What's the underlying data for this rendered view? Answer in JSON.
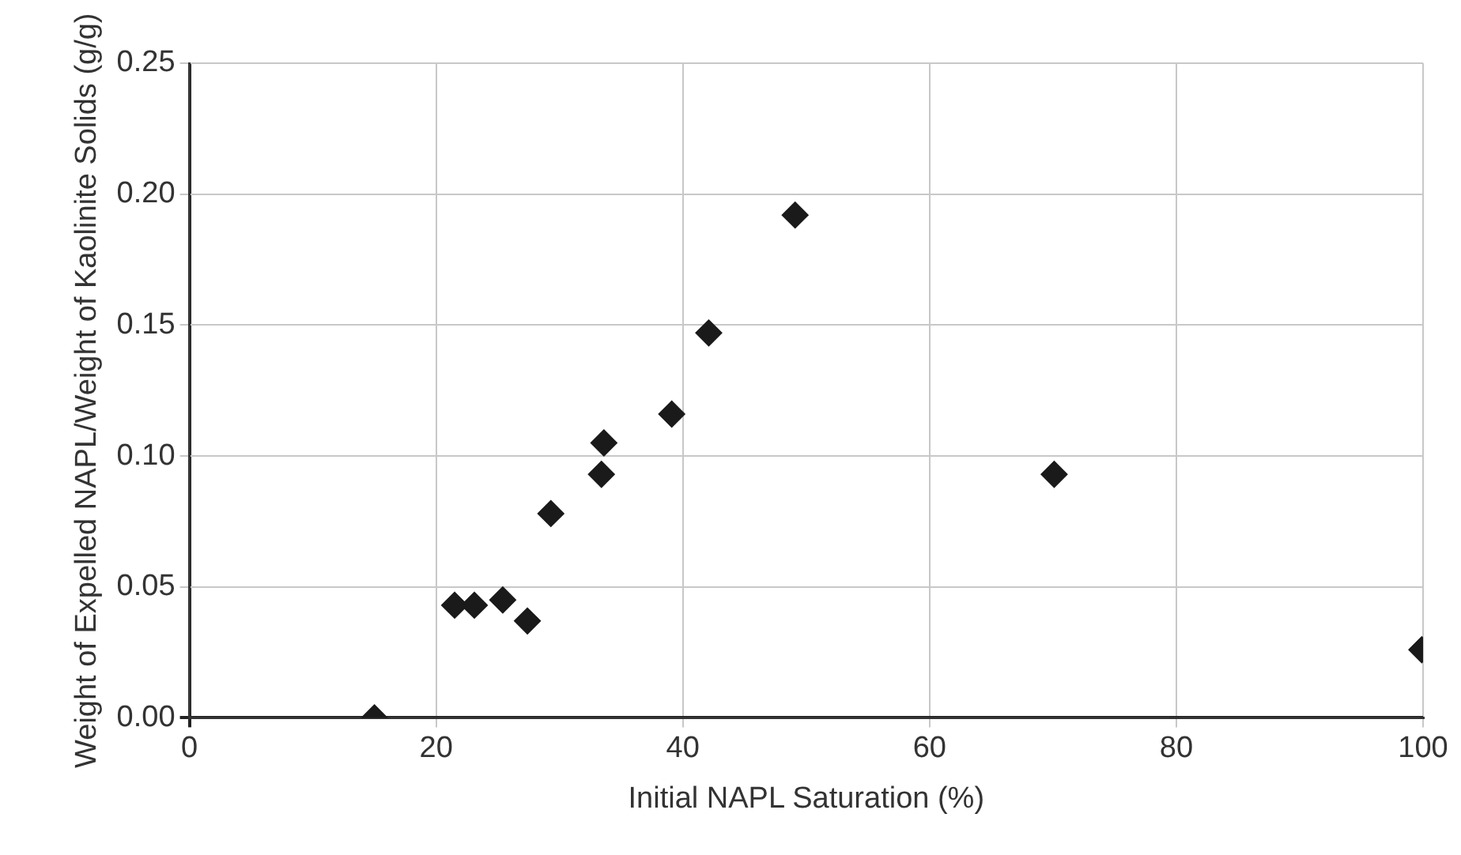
{
  "chart_data": {
    "type": "scatter",
    "xlabel": "Initial NAPL Saturation (%)",
    "ylabel": "Weight of Expelled NAPL/Weight of Kaolinite Solids (g/g)",
    "series": [
      {
        "color": "#1a1a1a",
        "x": [
          15,
          21.5,
          23.1,
          25.4,
          27.4,
          29.3,
          33.4,
          33.6,
          39.1,
          42.1,
          49.1,
          70.1,
          99.9
        ],
        "values": [
          0,
          0.043,
          0.043,
          0.045,
          0.037,
          0.078,
          0.093,
          0.105,
          0.116,
          0.147,
          0.192,
          0.093,
          0.026
        ]
      }
    ],
    "xlim": [
      0,
      100
    ],
    "xticks": [
      0,
      20,
      40,
      60,
      80,
      100
    ],
    "ylim": [
      0,
      0.25
    ],
    "yticks": [
      {
        "value": 0,
        "label": "0.00"
      },
      {
        "value": 0.05,
        "label": "0.05"
      },
      {
        "value": 0.1,
        "label": "0.10"
      },
      {
        "value": 0.15,
        "label": "0.15"
      },
      {
        "value": 0.2,
        "label": "0.20"
      },
      {
        "value": 0.25,
        "label": "0.25"
      }
    ],
    "grid": true,
    "marker": "diamond"
  }
}
